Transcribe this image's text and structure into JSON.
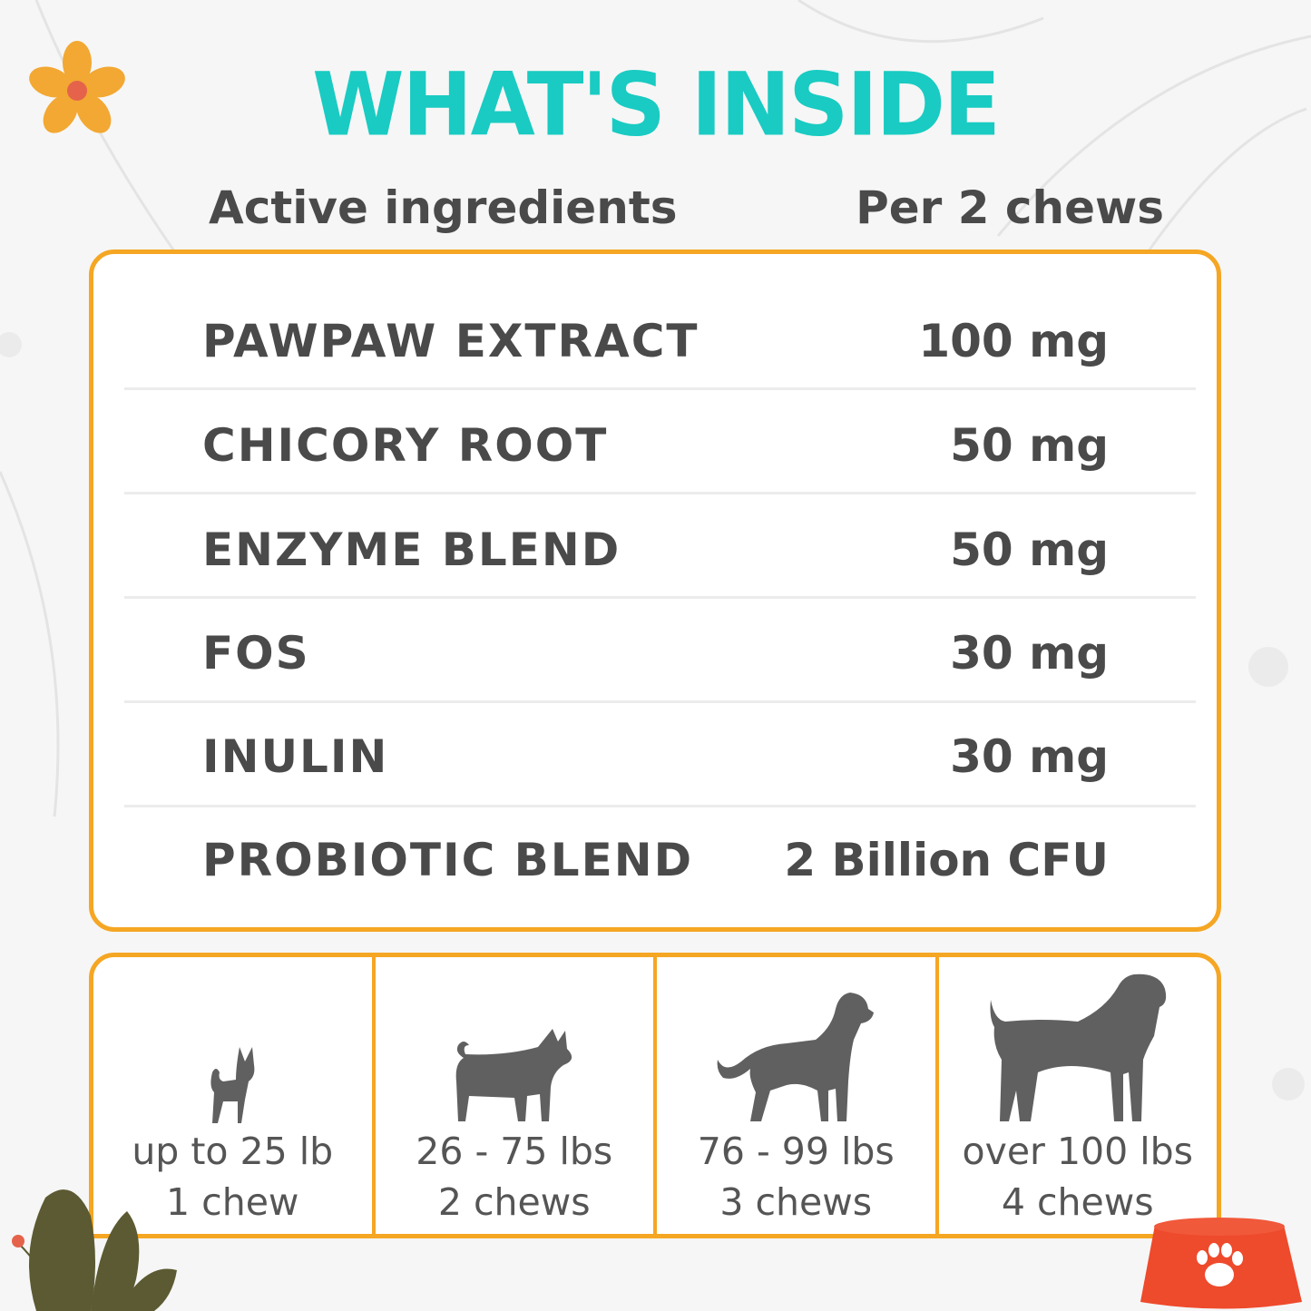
{
  "title": "WHAT'S INSIDE",
  "headers": {
    "ingredients": "Active ingredients",
    "amount": "Per 2 chews"
  },
  "ingredients": [
    {
      "name": "PAWPAW EXTRACT",
      "amount": "100 mg"
    },
    {
      "name": "CHICORY ROOT",
      "amount": "50 mg"
    },
    {
      "name": "ENZYME BLEND",
      "amount": "50 mg"
    },
    {
      "name": "FOS",
      "amount": "30 mg"
    },
    {
      "name": "INULIN",
      "amount": "30 mg"
    },
    {
      "name": "PROBIOTIC BLEND",
      "amount": "2 Billion CFU"
    }
  ],
  "dosage": [
    {
      "weight": "up to 25 lb",
      "chews": "1 chew",
      "icon": "small-dog-icon"
    },
    {
      "weight": "26 - 75 lbs",
      "chews": "2 chews",
      "icon": "medium-dog-icon"
    },
    {
      "weight": "76 - 99 lbs",
      "chews": "3 chews",
      "icon": "large-dog-icon"
    },
    {
      "weight": "over 100 lbs",
      "chews": "4 chews",
      "icon": "giant-dog-icon"
    }
  ],
  "colors": {
    "title": "#19cbc2",
    "border": "#f5a623",
    "text": "#4a4a4a",
    "dog": "#606060",
    "bowl": "#ee4a2c",
    "flower": "#f2a832",
    "plant": "#5b5a32"
  }
}
